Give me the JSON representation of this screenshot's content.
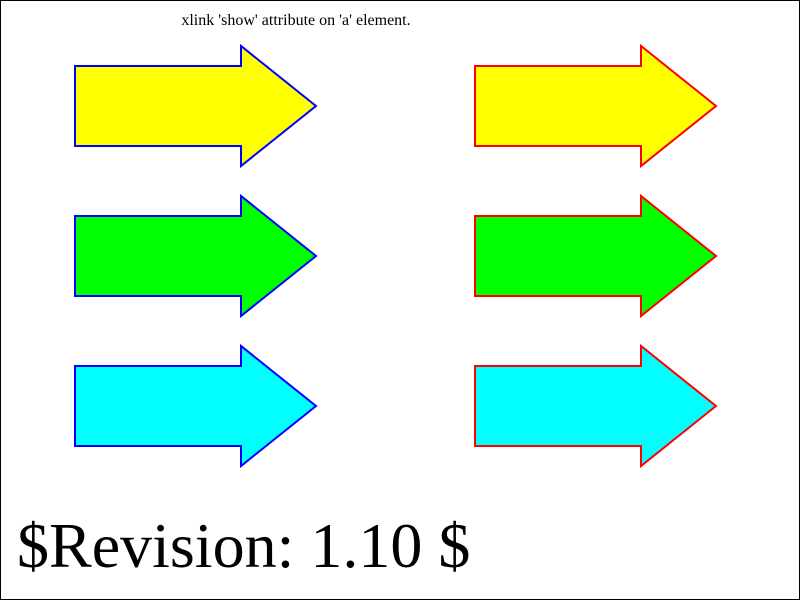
{
  "title": "xlink 'show' attribute on 'a' element.",
  "revision": "$Revision: 1.10 $",
  "colors": {
    "left_stroke": "#0000ff",
    "right_stroke": "#ff0000",
    "fills": [
      "#ffff00",
      "#00ff00",
      "#00ffff"
    ]
  },
  "links": {
    "left_column": [
      {
        "icon": "right-arrow-icon",
        "fill": "#ffff00",
        "stroke": "#0000ff"
      },
      {
        "icon": "right-arrow-icon",
        "fill": "#00ff00",
        "stroke": "#0000ff"
      },
      {
        "icon": "right-arrow-icon",
        "fill": "#00ffff",
        "stroke": "#0000ff"
      }
    ],
    "right_column": [
      {
        "icon": "right-arrow-icon",
        "fill": "#ffff00",
        "stroke": "#ff0000"
      },
      {
        "icon": "right-arrow-icon",
        "fill": "#00ff00",
        "stroke": "#ff0000"
      },
      {
        "icon": "right-arrow-icon",
        "fill": "#00ffff",
        "stroke": "#ff0000"
      }
    ]
  }
}
